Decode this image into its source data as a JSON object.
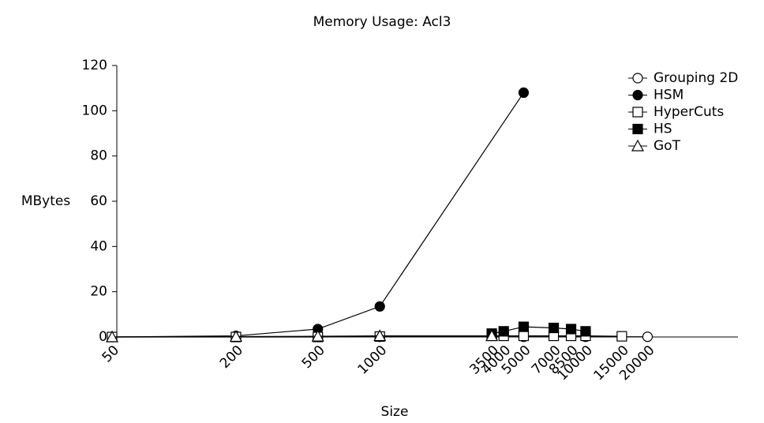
{
  "chart_data": {
    "type": "line",
    "title": "Memory Usage: Acl3",
    "xlabel": "Size",
    "ylabel": "MBytes",
    "xscale": "log",
    "xlim": [
      50,
      55000
    ],
    "ylim": [
      0,
      120
    ],
    "xticks": [
      50,
      200,
      500,
      1000,
      3500,
      4000,
      5000,
      7000,
      8500,
      10000,
      15000,
      20000
    ],
    "yticks": [
      0,
      20,
      40,
      60,
      80,
      100,
      120
    ],
    "legend": "top-right",
    "series": [
      {
        "name": "Grouping 2D",
        "color": "#000000",
        "marker": "circle",
        "filled": false,
        "x": [
          50,
          200,
          500,
          1000,
          5000,
          10000,
          20000
        ],
        "values": [
          0,
          0.1,
          0.1,
          0.1,
          0.1,
          0.1,
          0.1
        ]
      },
      {
        "name": "HSM",
        "color": "#000000",
        "marker": "circle",
        "filled": true,
        "x": [
          50,
          200,
          500,
          1000,
          5000
        ],
        "values": [
          0,
          0.5,
          3.5,
          13.5,
          108
        ]
      },
      {
        "name": "HyperCuts",
        "color": "#000000",
        "marker": "square",
        "filled": false,
        "x": [
          50,
          200,
          500,
          1000,
          3500,
          4000,
          5000,
          7000,
          8500,
          10000,
          15000
        ],
        "values": [
          0,
          0,
          0,
          0.2,
          0.5,
          0.5,
          0.5,
          0.5,
          0.5,
          0.5,
          0.3
        ]
      },
      {
        "name": "HS",
        "color": "#000000",
        "marker": "square",
        "filled": true,
        "x": [
          3500,
          4000,
          5000,
          7000,
          8500,
          10000
        ],
        "values": [
          1.5,
          2.5,
          4.5,
          4,
          3.5,
          2.5
        ]
      },
      {
        "name": "GoT",
        "color": "#000000",
        "marker": "triangle",
        "filled": false,
        "x": [
          50,
          200,
          500,
          1000,
          3500
        ],
        "values": [
          0,
          0.2,
          0.3,
          0.5,
          0.5
        ]
      }
    ]
  }
}
